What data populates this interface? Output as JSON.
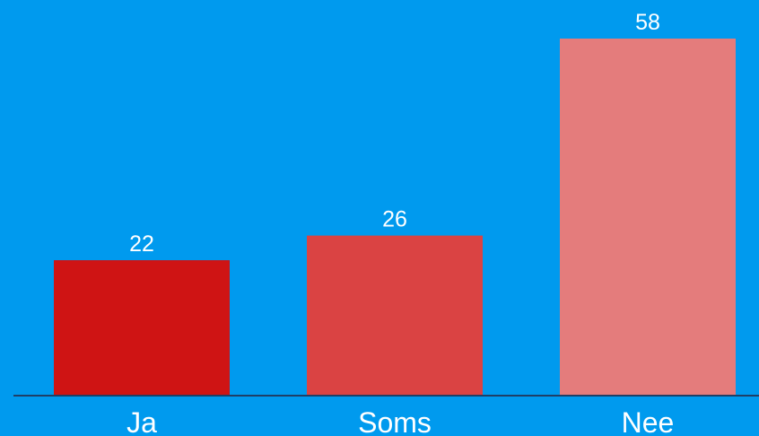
{
  "chart_data": {
    "type": "bar",
    "categories": [
      "Ja",
      "Soms",
      "Nee"
    ],
    "values": [
      22,
      26,
      58
    ],
    "value_labels": [
      "22",
      "26",
      "58"
    ],
    "colors": [
      "#CF1414",
      "#DA4343",
      "#E47C7C"
    ],
    "background_color": "#009AEE",
    "axis_color": "#1F3F66",
    "grid": false,
    "legend": "none",
    "ylim": [
      0,
      58
    ]
  }
}
